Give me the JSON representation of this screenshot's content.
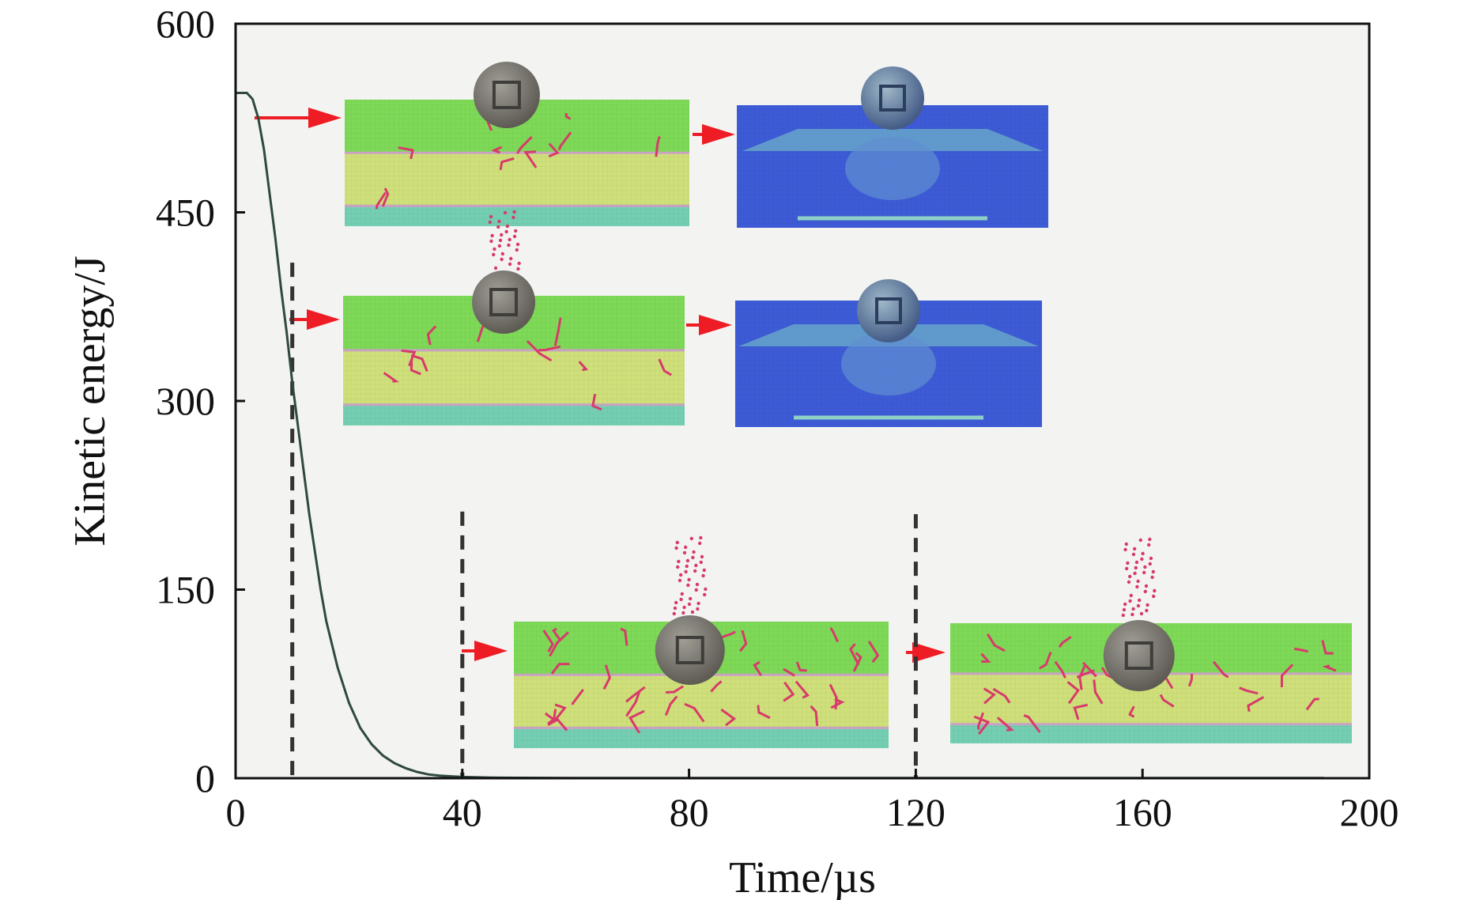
{
  "chart_data": {
    "type": "line",
    "title": "",
    "xlabel": "Time/µs",
    "ylabel": "Kinetic energy/J",
    "xlim": [
      0,
      200
    ],
    "ylim": [
      0,
      600
    ],
    "xticks": [
      0,
      40,
      80,
      120,
      160,
      200
    ],
    "yticks": [
      0,
      150,
      300,
      450,
      600
    ],
    "grid": false,
    "series": [
      {
        "name": "Kinetic energy",
        "color": "#2f4a3c",
        "x": [
          0,
          2,
          3,
          4,
          5,
          6,
          7,
          8,
          9,
          10,
          11,
          12,
          13,
          14,
          15,
          16,
          18,
          20,
          22,
          24,
          26,
          28,
          30,
          32,
          34,
          36,
          38,
          40,
          45,
          50,
          60,
          80,
          100,
          120,
          140,
          160,
          180,
          192
        ],
        "y": [
          545,
          545,
          540,
          525,
          500,
          465,
          430,
          390,
          355,
          315,
          280,
          245,
          210,
          180,
          150,
          125,
          88,
          60,
          40,
          27,
          18,
          12,
          8,
          5,
          3,
          2,
          1.5,
          1,
          0.5,
          0.3,
          0.2,
          0.1,
          0.1,
          0.1,
          0.1,
          0.1,
          0.1,
          0.1
        ]
      }
    ],
    "markers": [
      {
        "name": "dashed-marker",
        "x": 10,
        "y_top": 410
      },
      {
        "name": "dashed-marker",
        "x": 40,
        "y_top": 212
      },
      {
        "name": "dashed-marker",
        "x": 120,
        "y_top": 210
      }
    ],
    "annotations": [
      "Simulation snapshots of projectile penetration: stress field (blue) and damage (green/yellow layers with red cracks) at successive times"
    ]
  },
  "colors": {
    "plot_background": "#f3f4f2",
    "arrow": "#ee1c24",
    "layer_top": "#7ed957",
    "layer_mid": "#cfe07a",
    "layer_bottom": "#74cfb2",
    "stress_blue": "#3d5bd6",
    "crack_red": "#d83a6b",
    "projectile": "#7d7a73"
  }
}
